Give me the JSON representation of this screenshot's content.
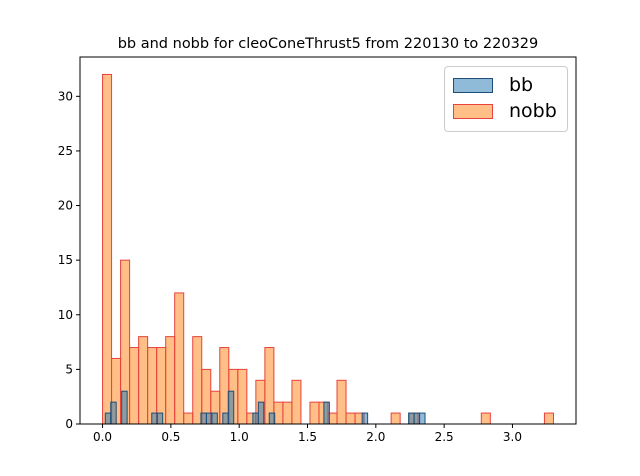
{
  "chart_data": {
    "type": "bar",
    "title": "bb and nobb for cleoConeThrust5 from 220130 to 220329",
    "xlabel": "",
    "ylabel": "",
    "xlim": [
      -0.165,
      3.465
    ],
    "ylim": [
      0,
      33.6
    ],
    "xticks": [
      "0.0",
      "0.5",
      "1.0",
      "1.5",
      "2.0",
      "2.5",
      "3.0"
    ],
    "yticks": [
      "0",
      "5",
      "10",
      "15",
      "20",
      "25",
      "30"
    ],
    "legend_position": "upper right",
    "series": [
      {
        "name": "bb",
        "color": "#1f77b4",
        "edge_color": "#1f4e79",
        "bin_width": 0.04,
        "bins": [
          {
            "x": 0.04,
            "v": 1
          },
          {
            "x": 0.08,
            "v": 2
          },
          {
            "x": 0.16,
            "v": 3
          },
          {
            "x": 0.38,
            "v": 1
          },
          {
            "x": 0.42,
            "v": 1
          },
          {
            "x": 0.74,
            "v": 1
          },
          {
            "x": 0.78,
            "v": 1
          },
          {
            "x": 0.82,
            "v": 1
          },
          {
            "x": 0.9,
            "v": 1
          },
          {
            "x": 0.94,
            "v": 3
          },
          {
            "x": 1.12,
            "v": 1
          },
          {
            "x": 1.16,
            "v": 2
          },
          {
            "x": 1.24,
            "v": 1
          },
          {
            "x": 1.64,
            "v": 2
          },
          {
            "x": 1.92,
            "v": 1
          },
          {
            "x": 2.26,
            "v": 1
          },
          {
            "x": 2.3,
            "v": 1
          },
          {
            "x": 2.34,
            "v": 1
          }
        ]
      },
      {
        "name": "nobb",
        "color": "#ff7f0e",
        "edge_color": "#e8423c",
        "bin_width": 0.066,
        "bins": [
          {
            "x": 0.033,
            "v": 32
          },
          {
            "x": 0.099,
            "v": 6
          },
          {
            "x": 0.165,
            "v": 15
          },
          {
            "x": 0.231,
            "v": 7
          },
          {
            "x": 0.297,
            "v": 8
          },
          {
            "x": 0.363,
            "v": 7
          },
          {
            "x": 0.429,
            "v": 7
          },
          {
            "x": 0.495,
            "v": 8
          },
          {
            "x": 0.561,
            "v": 12
          },
          {
            "x": 0.627,
            "v": 1
          },
          {
            "x": 0.693,
            "v": 8
          },
          {
            "x": 0.759,
            "v": 5
          },
          {
            "x": 0.825,
            "v": 3
          },
          {
            "x": 0.891,
            "v": 7
          },
          {
            "x": 0.957,
            "v": 5
          },
          {
            "x": 1.023,
            "v": 5
          },
          {
            "x": 1.089,
            "v": 1
          },
          {
            "x": 1.155,
            "v": 4
          },
          {
            "x": 1.221,
            "v": 7
          },
          {
            "x": 1.287,
            "v": 2
          },
          {
            "x": 1.353,
            "v": 2
          },
          {
            "x": 1.419,
            "v": 4
          },
          {
            "x": 1.551,
            "v": 2
          },
          {
            "x": 1.617,
            "v": 2
          },
          {
            "x": 1.683,
            "v": 1
          },
          {
            "x": 1.749,
            "v": 4
          },
          {
            "x": 1.815,
            "v": 1
          },
          {
            "x": 1.881,
            "v": 1
          },
          {
            "x": 2.145,
            "v": 1
          },
          {
            "x": 2.277,
            "v": 1
          },
          {
            "x": 2.805,
            "v": 1
          },
          {
            "x": 3.267,
            "v": 1
          }
        ]
      }
    ]
  }
}
